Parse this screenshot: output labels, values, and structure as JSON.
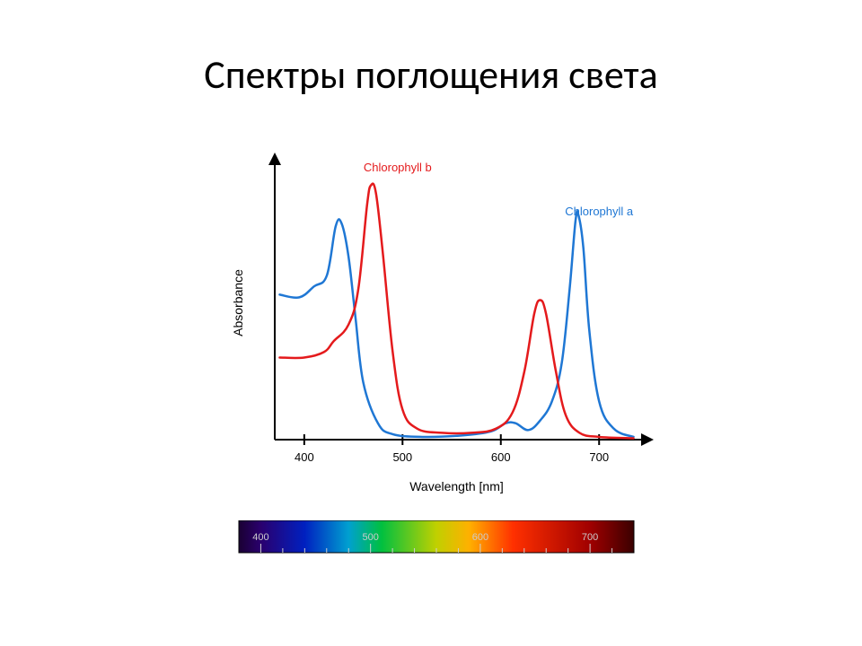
{
  "title": "Спектры поглощения света",
  "chart": {
    "type": "line",
    "xlabel": "Wavelength [nm]",
    "ylabel": "Absorbance",
    "xlim": [
      370,
      740
    ],
    "ylim": [
      0,
      1.0
    ],
    "x_ticks": [
      400,
      500,
      600,
      700
    ],
    "background_color": "#ffffff",
    "axis_color": "#000000",
    "axis_stroke_width": 2,
    "line_width": 2.5,
    "label_fontsize": 14,
    "tick_fontsize": 13,
    "series": [
      {
        "name": "Chlorophyll a",
        "color": "#1f77d4",
        "label_x": 700,
        "label_y": 0.82,
        "points": [
          [
            375,
            0.53
          ],
          [
            395,
            0.52
          ],
          [
            410,
            0.56
          ],
          [
            423,
            0.6
          ],
          [
            432,
            0.78
          ],
          [
            438,
            0.79
          ],
          [
            445,
            0.67
          ],
          [
            452,
            0.45
          ],
          [
            460,
            0.21
          ],
          [
            475,
            0.06
          ],
          [
            490,
            0.02
          ],
          [
            520,
            0.01
          ],
          [
            560,
            0.015
          ],
          [
            590,
            0.03
          ],
          [
            605,
            0.06
          ],
          [
            615,
            0.06
          ],
          [
            628,
            0.035
          ],
          [
            640,
            0.07
          ],
          [
            652,
            0.14
          ],
          [
            662,
            0.28
          ],
          [
            670,
            0.55
          ],
          [
            676,
            0.8
          ],
          [
            679,
            0.82
          ],
          [
            684,
            0.7
          ],
          [
            690,
            0.4
          ],
          [
            700,
            0.14
          ],
          [
            715,
            0.04
          ],
          [
            735,
            0.01
          ]
        ]
      },
      {
        "name": "Chlorophyll b",
        "color": "#e41a1c",
        "label_x": 495,
        "label_y": 0.98,
        "points": [
          [
            375,
            0.3
          ],
          [
            400,
            0.3
          ],
          [
            420,
            0.32
          ],
          [
            430,
            0.36
          ],
          [
            445,
            0.42
          ],
          [
            455,
            0.55
          ],
          [
            464,
            0.86
          ],
          [
            468,
            0.93
          ],
          [
            473,
            0.9
          ],
          [
            480,
            0.68
          ],
          [
            490,
            0.32
          ],
          [
            500,
            0.11
          ],
          [
            515,
            0.04
          ],
          [
            540,
            0.025
          ],
          [
            570,
            0.025
          ],
          [
            595,
            0.04
          ],
          [
            612,
            0.1
          ],
          [
            624,
            0.25
          ],
          [
            634,
            0.46
          ],
          [
            640,
            0.51
          ],
          [
            646,
            0.46
          ],
          [
            656,
            0.25
          ],
          [
            666,
            0.09
          ],
          [
            680,
            0.025
          ],
          [
            700,
            0.01
          ],
          [
            735,
            0.005
          ]
        ]
      }
    ]
  },
  "spectrum": {
    "range_nm": [
      380,
      740
    ],
    "ticks": [
      400,
      500,
      600,
      700
    ],
    "stops": [
      {
        "nm": 380,
        "color": "#1a0033"
      },
      {
        "nm": 400,
        "color": "#2a006e"
      },
      {
        "nm": 440,
        "color": "#0020c0"
      },
      {
        "nm": 480,
        "color": "#00a0d0"
      },
      {
        "nm": 510,
        "color": "#00c040"
      },
      {
        "nm": 560,
        "color": "#c0d000"
      },
      {
        "nm": 590,
        "color": "#ffb000"
      },
      {
        "nm": 630,
        "color": "#ff3000"
      },
      {
        "nm": 700,
        "color": "#a00000"
      },
      {
        "nm": 740,
        "color": "#3a0000"
      }
    ],
    "tick_color": "#d0d0d0",
    "border_color": "#000000"
  }
}
